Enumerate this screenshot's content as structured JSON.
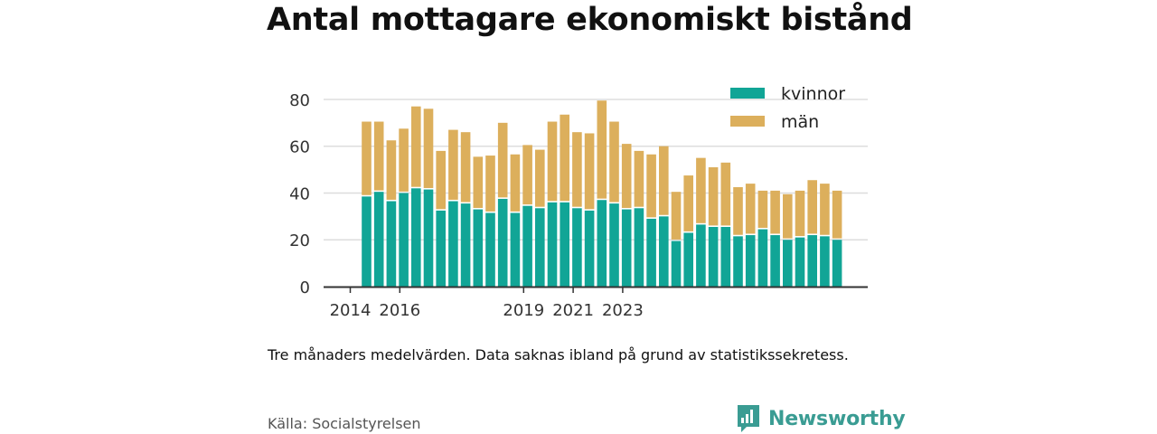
{
  "chart_data": {
    "type": "bar",
    "stacked": true,
    "title": "Antal mottagare ekonomiskt bistånd",
    "xlabel": "",
    "ylabel": "",
    "ylim": [
      0,
      85
    ],
    "y_ticks": [
      0,
      20,
      40,
      60,
      80
    ],
    "x_tick_labels": [
      "2014",
      "2016",
      "2019",
      "2021",
      "2023"
    ],
    "x_tick_positions": [
      0,
      4,
      14,
      18,
      22
    ],
    "grid": true,
    "legend_position": "top-right",
    "colors": {
      "kvinnor": "#11a596",
      "man": "#dcaf5c"
    },
    "series": [
      {
        "name": "kvinnor",
        "values": [
          38.5,
          40.5,
          36.5,
          40,
          42,
          41.5,
          32.5,
          36.5,
          35.5,
          33,
          31.5,
          37.5,
          31.5,
          34.5,
          33.5,
          36,
          36,
          33.5,
          32.5,
          37,
          35.5,
          33,
          33.5,
          29,
          30,
          19.5,
          23,
          26.5,
          25.5,
          25.5,
          21.5,
          22,
          24.5,
          22,
          20,
          21,
          22,
          21.5,
          20
        ]
      },
      {
        "name": "män",
        "values": [
          32,
          30,
          26,
          27.5,
          35,
          34.5,
          25.5,
          30.5,
          30.5,
          22.5,
          24.5,
          32.5,
          25,
          26,
          25,
          34.5,
          37.5,
          32.5,
          33,
          42.5,
          35,
          28,
          24.5,
          27.5,
          30,
          21,
          24.5,
          28.5,
          25.5,
          27.5,
          21,
          22,
          16.5,
          19,
          19.5,
          20,
          23.5,
          22.5,
          21
        ]
      }
    ]
  },
  "note": "Tre månaders medelvärden. Data saknas ibland på grund av statistikssekretess.",
  "source": "Källa: Socialstyrelsen",
  "brand": {
    "name": "Newsworthy",
    "icon": "bar-chart-speech-bubble-icon",
    "color": "#3a9c93"
  }
}
